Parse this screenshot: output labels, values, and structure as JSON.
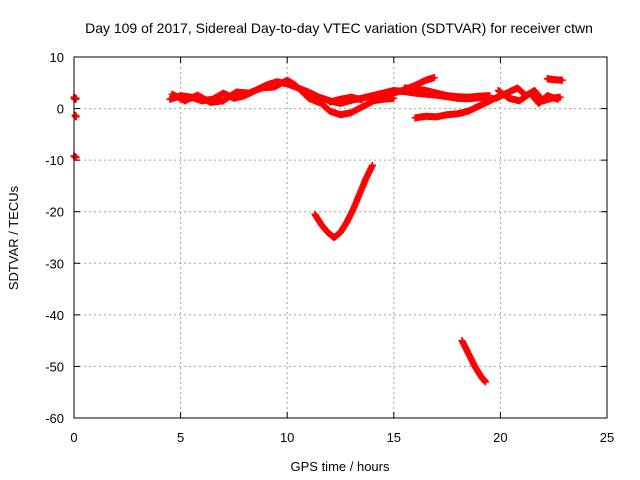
{
  "chart_data": {
    "type": "scatter",
    "title": "Day 109 of 2017, Sidereal Day-to-day VTEC variation (SDTVAR) for receiver ctwn",
    "xlabel": "GPS time / hours",
    "ylabel": "SDTVAR / TECUs",
    "xlim": [
      0,
      25
    ],
    "ylim": [
      -60,
      10
    ],
    "xticks": [
      0,
      5,
      10,
      15,
      20,
      25
    ],
    "yticks": [
      10,
      0,
      -10,
      -20,
      -30,
      -40,
      -50,
      -60
    ],
    "grid": true,
    "marker": "plus",
    "series": [
      {
        "color": "#ff0000",
        "segments": [
          [
            [
              0.0,
              2.2
            ],
            [
              0.05,
              1.8
            ],
            [
              0.1,
              2.0
            ]
          ],
          [
            [
              0.05,
              -1.3
            ],
            [
              0.1,
              -1.6
            ]
          ],
          [
            [
              0.0,
              -9.2
            ],
            [
              0.1,
              -9.5
            ]
          ],
          [
            [
              4.5,
              1.8
            ],
            [
              5.0,
              2.5
            ],
            [
              5.5,
              2.2
            ],
            [
              6.0,
              1.5
            ],
            [
              6.5,
              1.8
            ],
            [
              7.0,
              3.0
            ],
            [
              7.5,
              2.0
            ],
            [
              8.0,
              2.5
            ],
            [
              8.5,
              3.5
            ],
            [
              9.0,
              4.5
            ],
            [
              9.5,
              5.2
            ],
            [
              10.0,
              4.8
            ],
            [
              10.5,
              4.0
            ],
            [
              11.0,
              3.2
            ],
            [
              11.5,
              2.2
            ],
            [
              12.0,
              1.5
            ],
            [
              12.5,
              1.0
            ],
            [
              13.0,
              1.6
            ],
            [
              13.5,
              2.0
            ],
            [
              14.0,
              2.5
            ],
            [
              14.5,
              3.0
            ],
            [
              15.0,
              3.5
            ],
            [
              15.5,
              3.3
            ],
            [
              16.0,
              3.0
            ],
            [
              16.5,
              2.8
            ],
            [
              17.0,
              2.6
            ],
            [
              17.5,
              2.3
            ],
            [
              18.0,
              2.0
            ],
            [
              18.5,
              1.9
            ],
            [
              19.0,
              2.1
            ],
            [
              19.5,
              2.0
            ]
          ],
          [
            [
              4.6,
              2.8
            ],
            [
              5.2,
              1.5
            ],
            [
              5.8,
              2.6
            ],
            [
              6.4,
              1.2
            ],
            [
              7.0,
              1.5
            ],
            [
              7.6,
              3.2
            ],
            [
              8.2,
              3.0
            ],
            [
              8.8,
              4.0
            ],
            [
              9.4,
              4.2
            ],
            [
              10.0,
              5.5
            ],
            [
              10.4,
              4.5
            ],
            [
              11.0,
              2.0
            ],
            [
              11.6,
              1.0
            ],
            [
              12.0,
              -0.5
            ],
            [
              12.5,
              -1.2
            ],
            [
              13.0,
              -0.8
            ],
            [
              13.6,
              0.5
            ],
            [
              14.2,
              1.8
            ],
            [
              14.8,
              2.8
            ],
            [
              15.4,
              3.5
            ],
            [
              16.0,
              4.5
            ],
            [
              16.5,
              5.5
            ],
            [
              16.9,
              6.0
            ]
          ],
          [
            [
              15.5,
              4.0
            ],
            [
              16.0,
              3.8
            ],
            [
              16.5,
              3.5
            ],
            [
              17.0,
              3.0
            ],
            [
              17.5,
              2.5
            ],
            [
              18.0,
              2.3
            ],
            [
              18.5,
              2.2
            ],
            [
              19.0,
              2.4
            ],
            [
              19.5,
              2.5
            ]
          ],
          [
            [
              14.0,
              1.5
            ],
            [
              14.5,
              1.8
            ],
            [
              15.0,
              2.0
            ]
          ],
          [
            [
              12.0,
              1.3
            ],
            [
              12.5,
              1.8
            ],
            [
              13.0,
              2.2
            ],
            [
              13.5,
              1.7
            ]
          ],
          [
            [
              16.0,
              -1.8
            ],
            [
              16.5,
              -1.5
            ],
            [
              17.0,
              -1.6
            ],
            [
              17.5,
              -1.2
            ],
            [
              18.0,
              -1.0
            ],
            [
              18.5,
              -0.5
            ],
            [
              19.0,
              0.5
            ],
            [
              19.5,
              1.5
            ],
            [
              20.0,
              2.5
            ]
          ],
          [
            [
              19.8,
              2.0
            ],
            [
              20.3,
              3.0
            ],
            [
              20.8,
              4.0
            ],
            [
              21.2,
              2.5
            ],
            [
              21.6,
              3.5
            ],
            [
              22.0,
              1.5
            ],
            [
              22.4,
              2.0
            ],
            [
              22.8,
              2.2
            ]
          ],
          [
            [
              19.9,
              3.5
            ],
            [
              20.4,
              2.0
            ],
            [
              20.9,
              1.5
            ],
            [
              21.4,
              3.0
            ],
            [
              21.8,
              1.0
            ],
            [
              22.2,
              2.5
            ],
            [
              22.7,
              1.8
            ]
          ],
          [
            [
              22.2,
              5.8
            ],
            [
              22.5,
              5.6
            ],
            [
              22.9,
              5.5
            ]
          ],
          [
            [
              11.3,
              -20.5
            ],
            [
              11.6,
              -22.5
            ],
            [
              11.9,
              -24.0
            ],
            [
              12.2,
              -25.0
            ],
            [
              12.5,
              -24.0
            ],
            [
              12.8,
              -22.0
            ],
            [
              13.1,
              -19.5
            ],
            [
              13.4,
              -16.5
            ],
            [
              13.7,
              -13.5
            ],
            [
              14.0,
              -11.0
            ]
          ],
          [
            [
              18.2,
              -45.0
            ],
            [
              18.5,
              -47.5
            ],
            [
              18.8,
              -50.0
            ],
            [
              19.1,
              -52.0
            ],
            [
              19.3,
              -53.0
            ]
          ]
        ]
      }
    ]
  }
}
